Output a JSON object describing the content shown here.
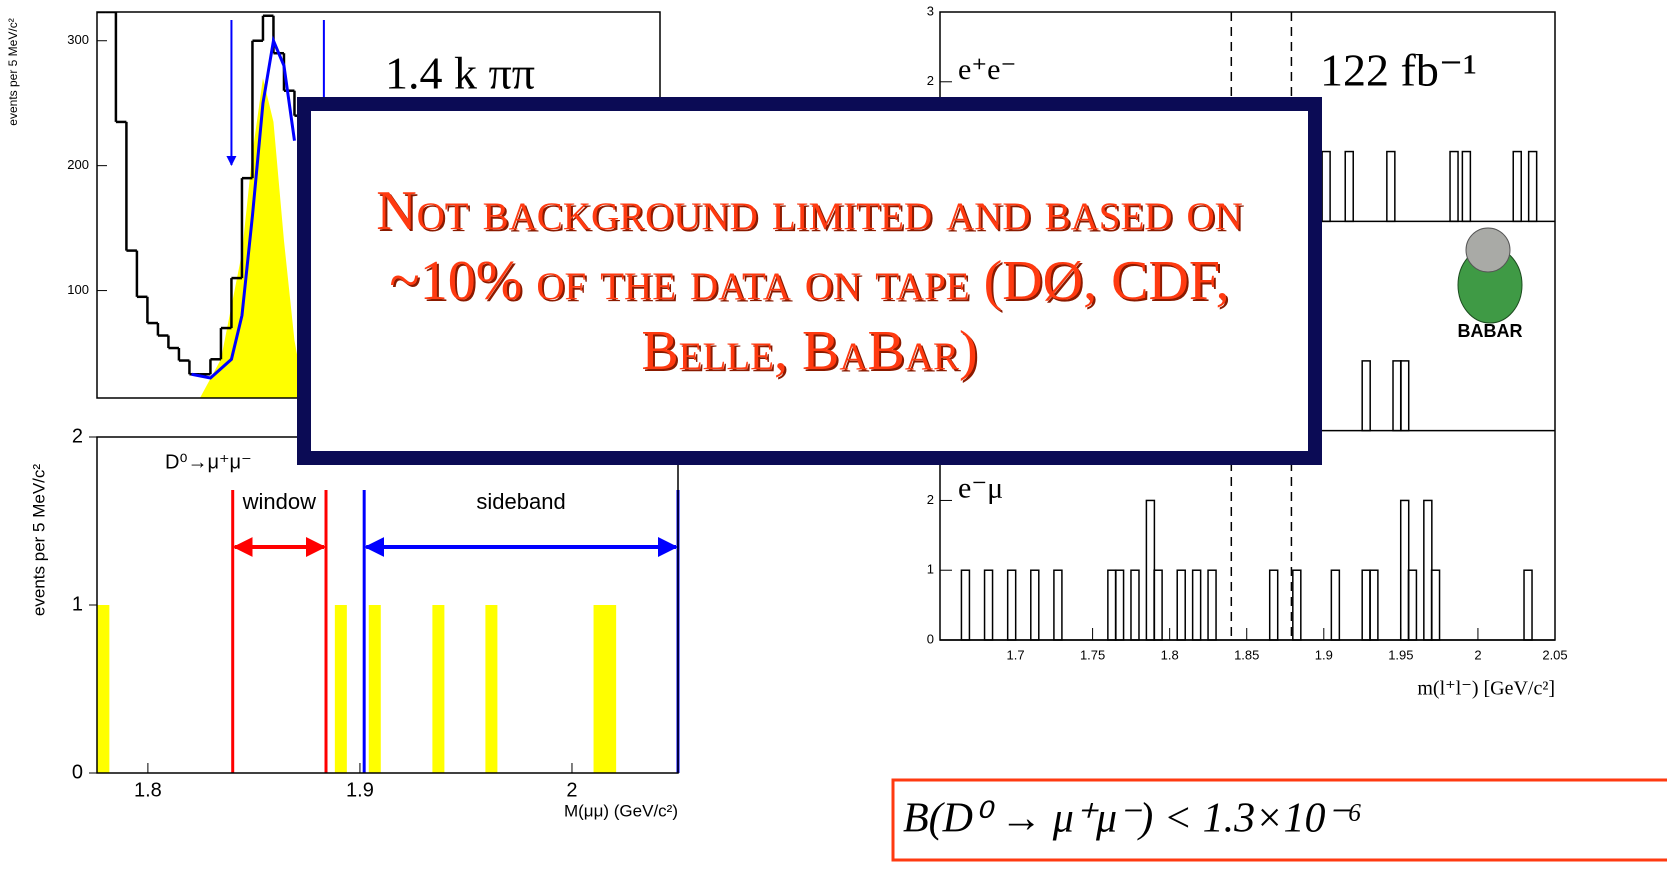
{
  "chart_data": [
    {
      "type": "histogram",
      "ylabel": "events per 5 MeV/c²",
      "annotation": "1.4 k ππ",
      "bins": [
        1.775,
        1.78,
        1.785,
        1.79,
        1.795,
        1.8,
        1.805,
        1.81,
        1.815,
        1.82,
        1.825,
        1.83,
        1.835,
        1.84,
        1.845,
        1.85,
        1.855,
        1.86,
        1.865,
        1.87,
        1.875
      ],
      "values": [
        323,
        323,
        235,
        132,
        95,
        74,
        64,
        54,
        44,
        33,
        33,
        45,
        70,
        110,
        190,
        300,
        320,
        290,
        260,
        240
      ],
      "color": "#000000",
      "xlim": [
        1.776,
        2.044
      ],
      "ylim": [
        14,
        323
      ],
      "yticks": [
        100,
        200,
        300
      ],
      "signal_shape": {
        "color": "#ffff00",
        "x": [
          1.825,
          1.835,
          1.845,
          1.85,
          1.855,
          1.86,
          1.865,
          1.87,
          1.875
        ],
        "values": [
          14,
          45,
          130,
          210,
          270,
          235,
          140,
          60,
          14
        ]
      },
      "fit": {
        "color": "#0000ff",
        "x": [
          1.821,
          1.83,
          1.84,
          1.845,
          1.85,
          1.855,
          1.86,
          1.865,
          1.87
        ],
        "values": [
          33,
          30,
          45,
          80,
          160,
          250,
          300,
          280,
          220
        ]
      },
      "markers": [
        1.84,
        1.884
      ]
    },
    {
      "type": "bar",
      "title": "D⁰→μ⁺μ⁻",
      "xlabel": "M(μμ) (GeV/c²)",
      "ylabel": "events per 5 MeV/c²",
      "x": [
        1.779,
        1.891,
        1.907,
        1.937,
        1.962,
        2.013,
        2.018
      ],
      "values": [
        1,
        1,
        1,
        1,
        1,
        1,
        1
      ],
      "color": "#ffff00",
      "xlim": [
        1.776,
        2.05
      ],
      "ylim": [
        0,
        2
      ],
      "xticks": [
        1.8,
        1.9,
        2
      ],
      "yticks": [
        0,
        1,
        2
      ],
      "regions": [
        {
          "name": "window",
          "range": [
            1.84,
            1.884
          ],
          "color": "#ff0000"
        },
        {
          "name": "sideband",
          "range": [
            1.902,
            2.05
          ],
          "color": "#0000ff"
        }
      ]
    },
    {
      "type": "panels",
      "annotation": "122 fb⁻¹",
      "xlabel": "m(l⁺l⁻)  [GeV/c²]",
      "logo_text": "BABAR",
      "xlim": [
        1.651,
        2.05
      ],
      "xticks": [
        1.7,
        1.75,
        1.8,
        1.85,
        1.9,
        1.95,
        2,
        2.05
      ],
      "ylim": [
        0,
        3
      ],
      "markers": [
        1.84,
        1.879
      ],
      "panels": [
        {
          "label": "e⁺e⁻",
          "yticks": [
            2,
            3
          ],
          "x": [
            1.9015,
            1.9165,
            1.9435,
            1.9845,
            1.9925,
            2.0255,
            2.0355
          ],
          "values": [
            1,
            1,
            1,
            1,
            1,
            1,
            1
          ]
        },
        {
          "x": [
            1.9275,
            1.9475,
            1.9525
          ],
          "values": [
            1,
            1,
            1
          ]
        },
        {
          "label": "e⁻μ",
          "yticks": [
            0,
            1,
            2
          ],
          "x": [
            1.6675,
            1.6825,
            1.6975,
            1.7125,
            1.7275,
            1.7625,
            1.7675,
            1.7775,
            1.7875,
            1.7925,
            1.8075,
            1.8175,
            1.8275,
            1.8675,
            1.8825,
            1.9075,
            1.9275,
            1.9325,
            1.9525,
            1.9575,
            1.9675,
            1.9725,
            2.0325
          ],
          "values": [
            1,
            1,
            1,
            1,
            1,
            1,
            1,
            1,
            2,
            1,
            1,
            1,
            1,
            1,
            1,
            1,
            1,
            1,
            2,
            1,
            2,
            1,
            1
          ]
        }
      ]
    }
  ],
  "overlay": {
    "text": "Not background limited and based on ~10% of the data on tape (DØ, CDF, Belle, BaBar)"
  },
  "result": {
    "text": "B(D⁰ → μ⁺μ⁻) < 1.3×10⁻⁶"
  }
}
